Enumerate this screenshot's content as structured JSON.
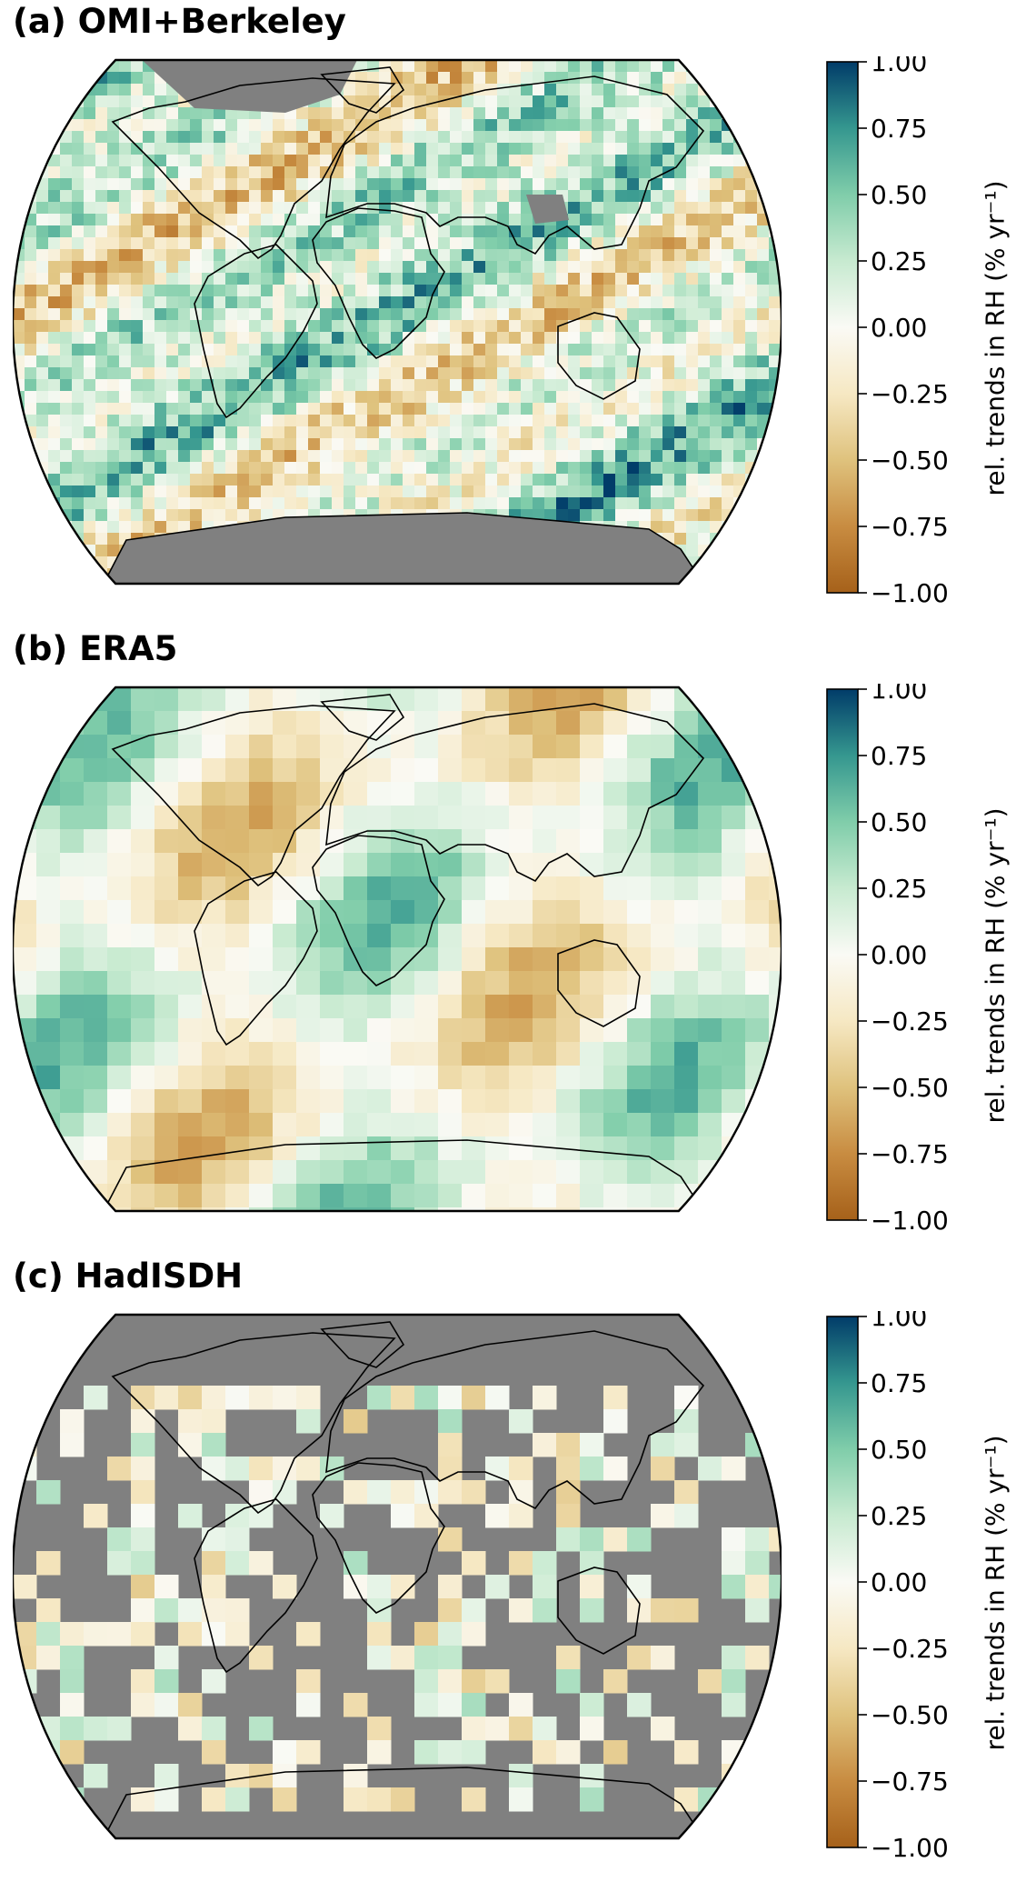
{
  "panels": [
    {
      "id": "a",
      "title": "(a) OMI+Berkeley",
      "style": "full"
    },
    {
      "id": "b",
      "title": "(b) ERA5",
      "style": "smooth"
    },
    {
      "id": "c",
      "title": "(c) HadISDH",
      "style": "sparse"
    }
  ],
  "colorbar": {
    "label": "rel. trends in RH (% yr⁻¹)",
    "ticks": [
      "1.00",
      "0.75",
      "0.50",
      "0.25",
      "0.00",
      "−0.25",
      "−0.50",
      "−0.75",
      "−1.00"
    ],
    "colormap": "BrBG",
    "range": [
      -1.0,
      1.0
    ]
  },
  "colors": {
    "missing": "#808080",
    "coastline": "#000000"
  }
}
